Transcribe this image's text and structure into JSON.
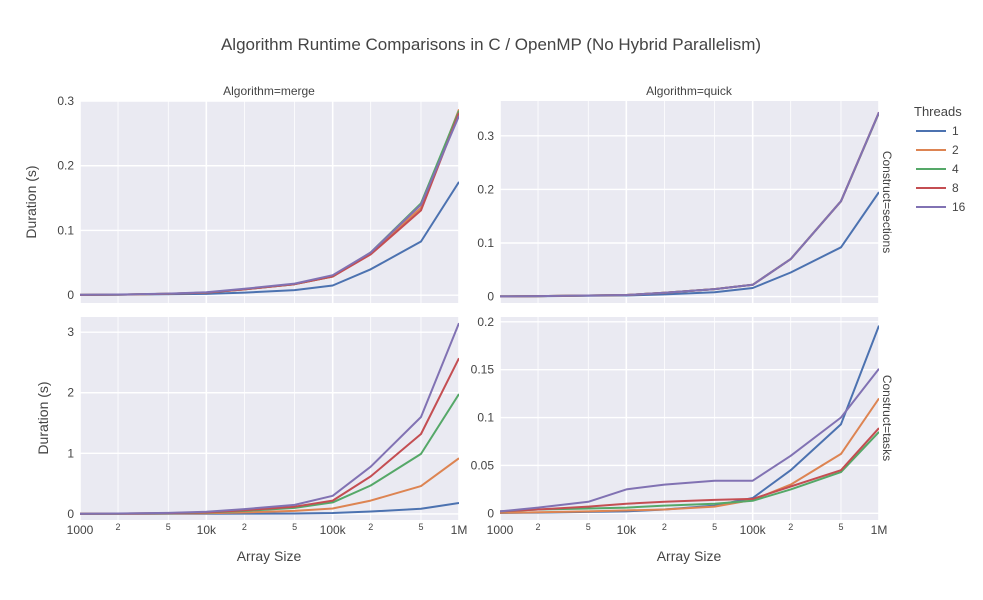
{
  "chart_data": {
    "type": "line",
    "title": "Algorithm Runtime Comparisons in C / OpenMP (No Hybrid Parallelism)",
    "xlabel": "Array Size",
    "ylabel": "Duration (s)",
    "xscale": "log",
    "xlim": [
      1000,
      1000000
    ],
    "x": [
      1000,
      2000,
      5000,
      10000,
      20000,
      50000,
      100000,
      200000,
      500000,
      1000000
    ],
    "x_ticks": [
      {
        "value": 1000,
        "label": "1000",
        "major": true
      },
      {
        "value": 2000,
        "label": "2",
        "major": false
      },
      {
        "value": 5000,
        "label": "5",
        "major": false
      },
      {
        "value": 10000,
        "label": "10k",
        "major": true
      },
      {
        "value": 20000,
        "label": "2",
        "major": false
      },
      {
        "value": 50000,
        "label": "5",
        "major": false
      },
      {
        "value": 100000,
        "label": "100k",
        "major": true
      },
      {
        "value": 200000,
        "label": "2",
        "major": false
      },
      {
        "value": 500000,
        "label": "5",
        "major": false
      },
      {
        "value": 1000000,
        "label": "1M",
        "major": true
      }
    ],
    "legend": {
      "title": "Threads",
      "placement": "right",
      "entries": [
        {
          "name": "1",
          "color": "#4c72b0"
        },
        {
          "name": "2",
          "color": "#dd8452"
        },
        {
          "name": "4",
          "color": "#55a868"
        },
        {
          "name": "8",
          "color": "#c44e52"
        },
        {
          "name": "16",
          "color": "#8172b3"
        }
      ]
    },
    "grid": true,
    "background": "#eaeaf2",
    "panels": [
      {
        "id": "merge-sections",
        "col_label": "Algorithm=merge",
        "row_label": "",
        "ylim": [
          -0.012,
          0.3
        ],
        "y_ticks": [
          {
            "value": 0,
            "label": "0"
          },
          {
            "value": 0.1,
            "label": "0.1"
          },
          {
            "value": 0.2,
            "label": "0.2"
          },
          {
            "value": 0.3,
            "label": "0.3"
          }
        ],
        "series": [
          {
            "name": "1",
            "values": [
              0.0004,
              0.0008,
              0.0015,
              0.002,
              0.004,
              0.008,
              0.015,
              0.04,
              0.083,
              0.175
            ]
          },
          {
            "name": "2",
            "values": [
              0.0005,
              0.001,
              0.0022,
              0.004,
              0.009,
              0.017,
              0.029,
              0.065,
              0.135,
              0.287
            ]
          },
          {
            "name": "4",
            "values": [
              0.0005,
              0.001,
              0.0022,
              0.004,
              0.009,
              0.017,
              0.029,
              0.066,
              0.142,
              0.285
            ]
          },
          {
            "name": "8",
            "values": [
              0.0005,
              0.001,
              0.0022,
              0.004,
              0.009,
              0.017,
              0.029,
              0.063,
              0.131,
              0.282
            ]
          },
          {
            "name": "16",
            "values": [
              0.0006,
              0.0012,
              0.0025,
              0.0045,
              0.01,
              0.018,
              0.031,
              0.066,
              0.14,
              0.277
            ]
          }
        ]
      },
      {
        "id": "quick-sections",
        "col_label": "Algorithm=quick",
        "row_label": "Construct=sections",
        "ylim": [
          -0.012,
          0.365
        ],
        "y_ticks": [
          {
            "value": 0,
            "label": "0"
          },
          {
            "value": 0.1,
            "label": "0.1"
          },
          {
            "value": 0.2,
            "label": "0.2"
          },
          {
            "value": 0.3,
            "label": "0.3"
          }
        ],
        "series": [
          {
            "name": "1",
            "values": [
              0.0003,
              0.0007,
              0.0015,
              0.002,
              0.004,
              0.008,
              0.016,
              0.045,
              0.092,
              0.195
            ]
          },
          {
            "name": "2",
            "values": [
              0.0004,
              0.0009,
              0.002,
              0.003,
              0.007,
              0.014,
              0.022,
              0.07,
              0.178,
              0.344
            ]
          },
          {
            "name": "4",
            "values": [
              0.0004,
              0.0009,
              0.002,
              0.003,
              0.007,
              0.014,
              0.022,
              0.07,
              0.178,
              0.343
            ]
          },
          {
            "name": "8",
            "values": [
              0.0004,
              0.0009,
              0.002,
              0.003,
              0.007,
              0.014,
              0.022,
              0.07,
              0.178,
              0.344
            ]
          },
          {
            "name": "16",
            "values": [
              0.0004,
              0.0009,
              0.002,
              0.003,
              0.007,
              0.014,
              0.022,
              0.07,
              0.178,
              0.344
            ]
          }
        ]
      },
      {
        "id": "merge-tasks",
        "col_label": "",
        "row_label": "",
        "ylim": [
          -0.1,
          3.25
        ],
        "y_ticks": [
          {
            "value": 0,
            "label": "0"
          },
          {
            "value": 1,
            "label": "1"
          },
          {
            "value": 2,
            "label": "2"
          },
          {
            "value": 3,
            "label": "3"
          }
        ],
        "series": [
          {
            "name": "1",
            "values": [
              0.0005,
              0.001,
              0.002,
              0.003,
              0.005,
              0.008,
              0.015,
              0.04,
              0.085,
              0.18
            ]
          },
          {
            "name": "2",
            "values": [
              0.0015,
              0.003,
              0.007,
              0.012,
              0.025,
              0.05,
              0.09,
              0.22,
              0.46,
              0.92
            ]
          },
          {
            "name": "4",
            "values": [
              0.002,
              0.005,
              0.012,
              0.022,
              0.05,
              0.1,
              0.19,
              0.47,
              0.99,
              1.98
            ]
          },
          {
            "name": "8",
            "values": [
              0.003,
              0.006,
              0.014,
              0.026,
              0.06,
              0.12,
              0.22,
              0.62,
              1.32,
              2.57
            ]
          },
          {
            "name": "16",
            "values": [
              0.003,
              0.007,
              0.017,
              0.035,
              0.08,
              0.15,
              0.3,
              0.78,
              1.6,
              3.15
            ]
          }
        ]
      },
      {
        "id": "quick-tasks",
        "col_label": "",
        "row_label": "Construct=tasks",
        "ylim": [
          -0.007,
          0.205
        ],
        "y_ticks": [
          {
            "value": 0,
            "label": "0"
          },
          {
            "value": 0.05,
            "label": "0.05"
          },
          {
            "value": 0.1,
            "label": "0.1"
          },
          {
            "value": 0.15,
            "label": "0.15"
          },
          {
            "value": 0.2,
            "label": "0.2"
          }
        ],
        "series": [
          {
            "name": "1",
            "values": [
              0.0003,
              0.0007,
              0.0015,
              0.002,
              0.004,
              0.008,
              0.016,
              0.045,
              0.093,
              0.196
            ]
          },
          {
            "name": "2",
            "values": [
              0.0005,
              0.001,
              0.002,
              0.003,
              0.004,
              0.007,
              0.014,
              0.03,
              0.062,
              0.12
            ]
          },
          {
            "name": "4",
            "values": [
              0.002,
              0.004,
              0.005,
              0.006,
              0.008,
              0.01,
              0.013,
              0.025,
              0.043,
              0.085
            ]
          },
          {
            "name": "8",
            "values": [
              0.002,
              0.004,
              0.007,
              0.01,
              0.012,
              0.014,
              0.015,
              0.028,
              0.045,
              0.089
            ]
          },
          {
            "name": "16",
            "values": [
              0.002,
              0.006,
              0.012,
              0.025,
              0.03,
              0.034,
              0.034,
              0.06,
              0.1,
              0.151
            ]
          }
        ]
      }
    ]
  }
}
